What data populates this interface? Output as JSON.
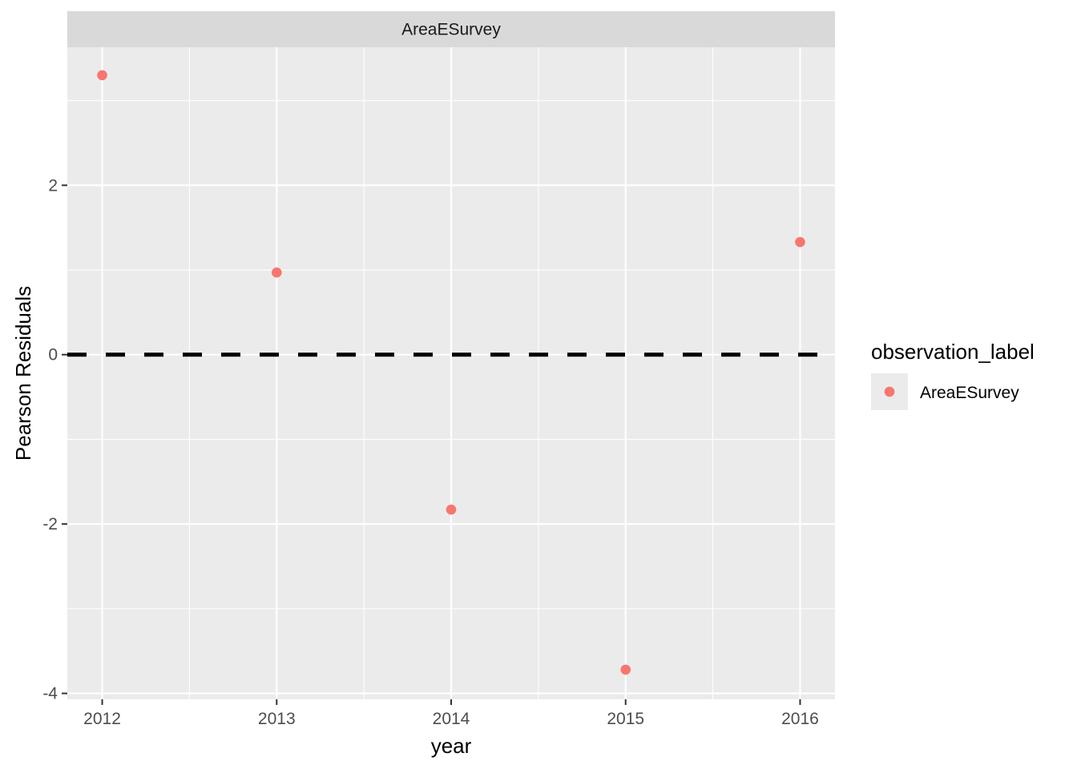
{
  "chart_data": {
    "type": "scatter",
    "facet_label": "AreaESurvey",
    "xlabel": "year",
    "ylabel": "Pearson Residuals",
    "x": [
      2012,
      2013,
      2014,
      2015,
      2016
    ],
    "series": [
      {
        "name": "AreaESurvey",
        "x": [
          2012,
          2013,
          2014,
          2015,
          2016
        ],
        "y": [
          3.3,
          0.97,
          -1.83,
          -3.72,
          1.33
        ],
        "color": "#F8766D"
      }
    ],
    "x_ticks": [
      "2012",
      "2013",
      "2014",
      "2015",
      "2016"
    ],
    "y_ticks": [
      "-4",
      "-2",
      "0",
      "2"
    ],
    "xlim": [
      2011.8,
      2016.2
    ],
    "ylim": [
      -4.07,
      3.63
    ],
    "reference_line": {
      "y": 0,
      "style": "dashed",
      "color": "#000000"
    },
    "legend": {
      "title": "observation_label",
      "entries": [
        "AreaESurvey"
      ],
      "position": "right"
    },
    "grid": true
  },
  "colors": {
    "panel_background": "#EBEBEB",
    "strip_background": "#D9D9D9",
    "grid_major": "#FFFFFF",
    "point": "#F8766D"
  }
}
